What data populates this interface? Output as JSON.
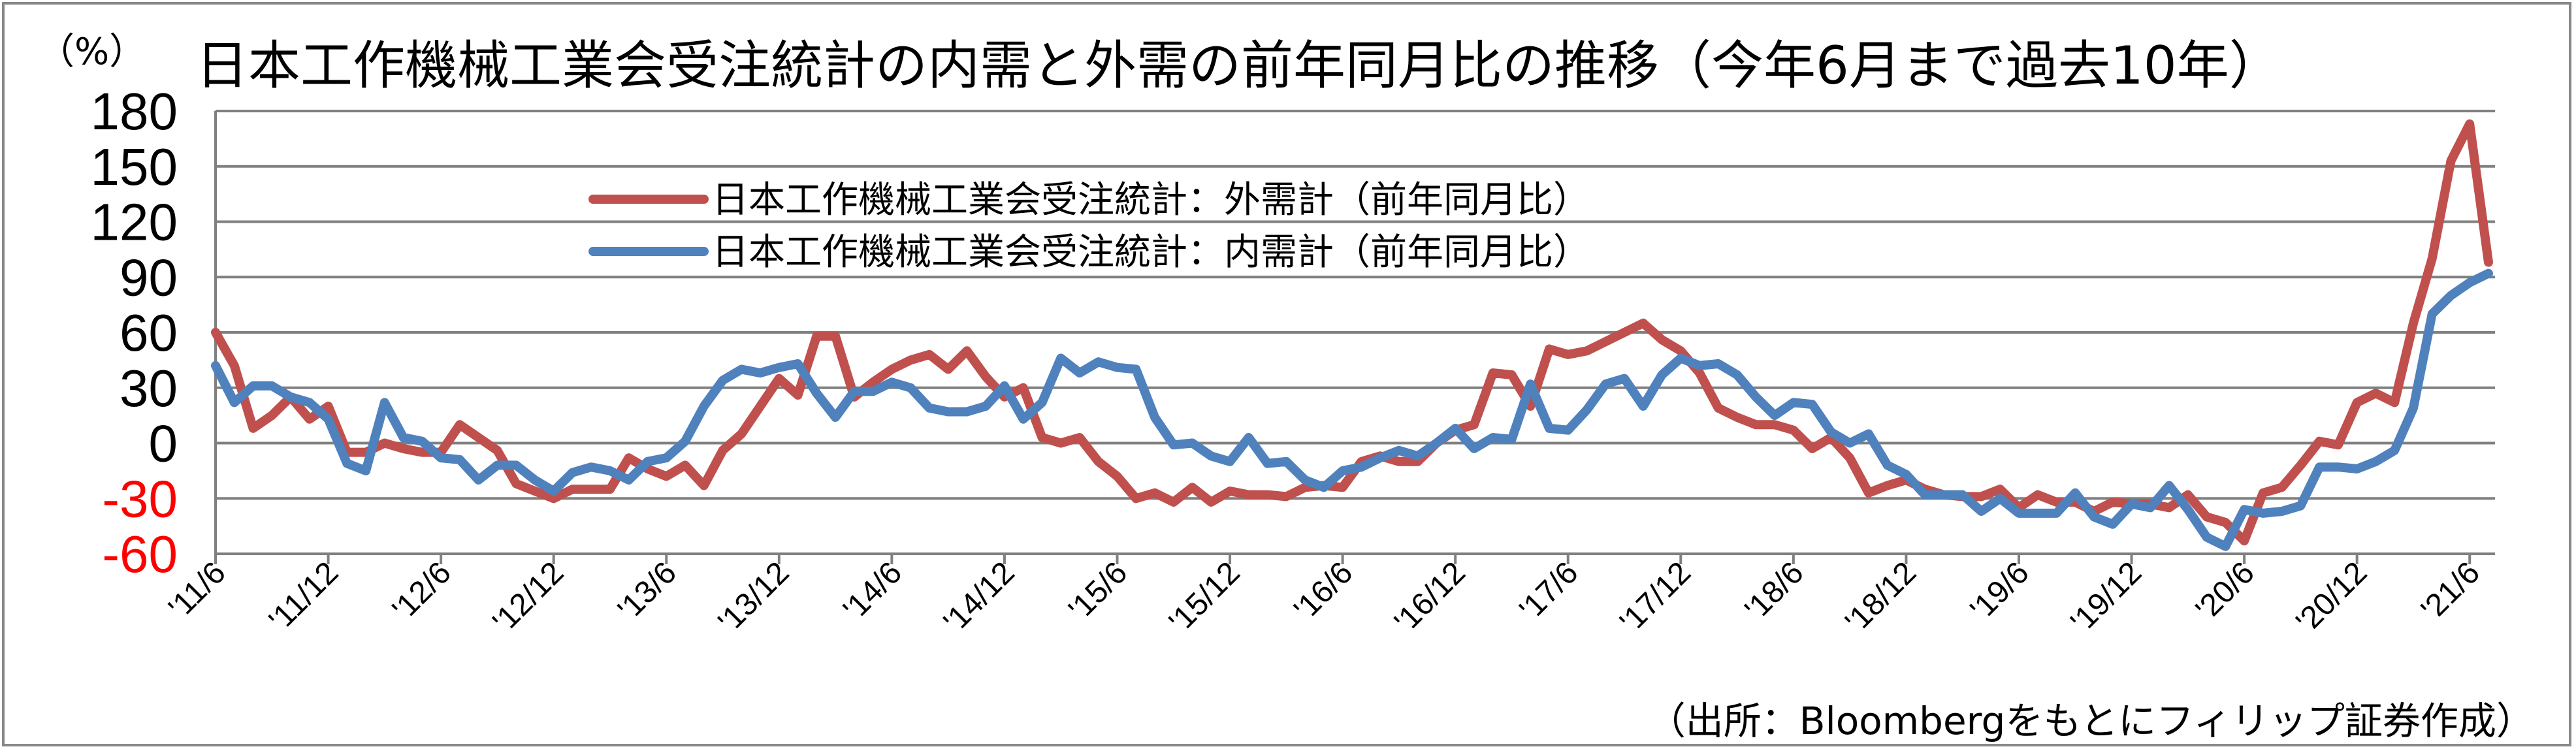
{
  "title": "日本工作機械工業会受注統計の内需と外需の前年同月比の推移（今年6月まで過去10年）",
  "unit_label": "（%）",
  "source_note": "（出所：Bloombergをもとにフィリップ証券作成）",
  "chart_data": {
    "type": "line",
    "title": "日本工作機械工業会受注統計の内需と外需の前年同月比の推移（今年6月まで過去10年）",
    "xlabel": "",
    "ylabel": "（%）",
    "ylim": [
      -60,
      180
    ],
    "yticks": [
      {
        "value": 180,
        "label": "180",
        "color": "#000000"
      },
      {
        "value": 150,
        "label": "150",
        "color": "#000000"
      },
      {
        "value": 120,
        "label": "120",
        "color": "#000000"
      },
      {
        "value": 90,
        "label": "90",
        "color": "#000000"
      },
      {
        "value": 60,
        "label": "60",
        "color": "#000000"
      },
      {
        "value": 30,
        "label": "30",
        "color": "#000000"
      },
      {
        "value": 0,
        "label": "0",
        "color": "#000000"
      },
      {
        "value": -30,
        "label": "-30",
        "color": "#ff0000"
      },
      {
        "value": -60,
        "label": "-60",
        "color": "#ff0000"
      }
    ],
    "x_start": "2011-06",
    "x_ticks": [
      "'11/6",
      "'11/12",
      "'12/6",
      "'12/12",
      "'13/6",
      "'13/12",
      "'14/6",
      "'14/12",
      "'15/6",
      "'15/12",
      "'16/6",
      "'16/12",
      "'17/6",
      "'17/12",
      "'18/6",
      "'18/12",
      "'19/6",
      "'19/12",
      "'20/6",
      "'20/12",
      "'21/6"
    ],
    "grid": true,
    "legend_position": "upper-left-center",
    "series": [
      {
        "name": "日本工作機械工業会受注統計：外需計（前年同月比）",
        "color": "#c0504d",
        "values": [
          60,
          42,
          8,
          15,
          25,
          13,
          20,
          -5,
          -5,
          0,
          -3,
          -5,
          -5,
          10,
          3,
          -4,
          -22,
          -26,
          -30,
          -25,
          -25,
          -25,
          -8,
          -14,
          -18,
          -12,
          -23,
          -4,
          5,
          20,
          35,
          26,
          58,
          58,
          25,
          33,
          40,
          45,
          48,
          40,
          50,
          36,
          25,
          30,
          3,
          0,
          3,
          -10,
          -18,
          -30,
          -27,
          -32,
          -24,
          -32,
          -26,
          -28,
          -28,
          -29,
          -24,
          -23,
          -24,
          -10,
          -7,
          -10,
          -10,
          0,
          7,
          10,
          38,
          37,
          20,
          51,
          48,
          50,
          55,
          60,
          65,
          56,
          50,
          38,
          19,
          14,
          10,
          10,
          7,
          -3,
          3,
          -8,
          -27,
          -23,
          -20,
          -25,
          -28,
          -29,
          -29,
          -25,
          -35,
          -28,
          -32,
          -32,
          -37,
          -32,
          -33,
          -33,
          -35,
          -28,
          -40,
          -43,
          -53,
          -27,
          -24,
          -12,
          1,
          -1,
          22,
          27,
          22,
          65,
          100,
          153,
          173,
          98
        ]
      },
      {
        "name": "日本工作機械工業会受注統計：内需計（前年同月比）",
        "color": "#4f81bd",
        "values": [
          42,
          22,
          31,
          31,
          25,
          22,
          13,
          -11,
          -15,
          22,
          3,
          1,
          -8,
          -9,
          -20,
          -12,
          -12,
          -20,
          -26,
          -16,
          -13,
          -15,
          -20,
          -10,
          -8,
          1,
          20,
          34,
          40,
          38,
          41,
          43,
          27,
          14,
          28,
          28,
          33,
          30,
          19,
          17,
          17,
          20,
          31,
          13,
          22,
          46,
          38,
          44,
          41,
          40,
          14,
          -1,
          0,
          -7,
          -10,
          3,
          -11,
          -10,
          -20,
          -24,
          -15,
          -13,
          -8,
          -4,
          -7,
          0,
          8,
          -3,
          3,
          2,
          32,
          8,
          7,
          18,
          32,
          35,
          20,
          37,
          46,
          42,
          43,
          37,
          25,
          15,
          22,
          21,
          6,
          0,
          5,
          -12,
          -17,
          -28,
          -28,
          -28,
          -37,
          -30,
          -38,
          -38,
          -38,
          -27,
          -40,
          -44,
          -33,
          -35,
          -23,
          -36,
          -51,
          -56,
          -36,
          -38,
          -37,
          -34,
          -13,
          -13,
          -14,
          -10,
          -4,
          19,
          70,
          80,
          87,
          92
        ]
      }
    ]
  }
}
